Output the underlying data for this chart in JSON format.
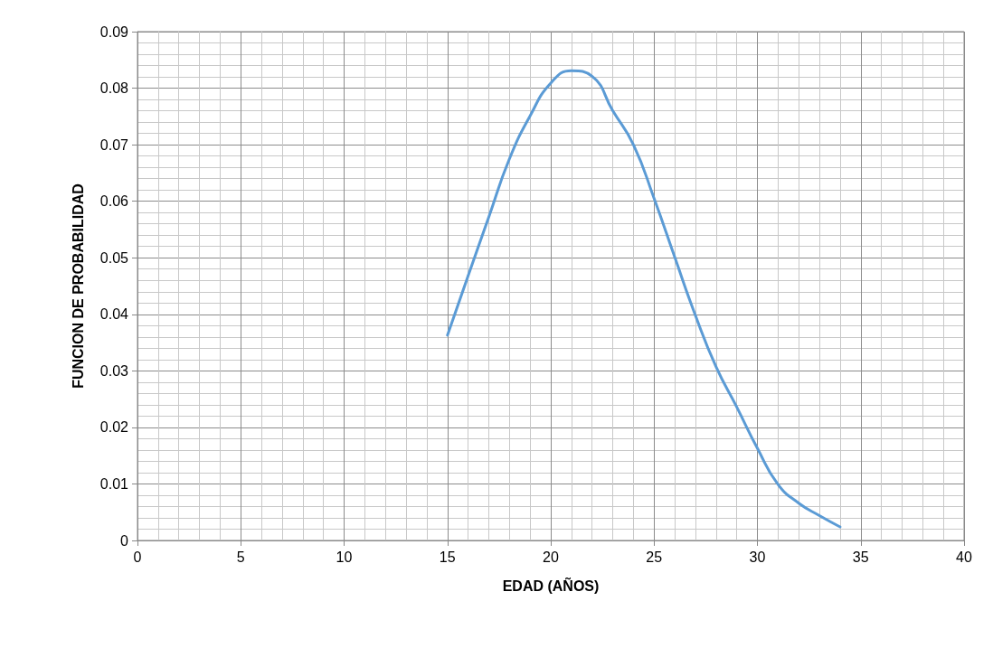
{
  "chart_data": {
    "type": "line",
    "xlabel": "EDAD (AÑOS)",
    "ylabel": "FUNCION DE PROBABILIDAD",
    "x": [
      15,
      16,
      17,
      18,
      19,
      20,
      21,
      22,
      23,
      24,
      25,
      26,
      27,
      28,
      29,
      30,
      31,
      32,
      33,
      34
    ],
    "series": [
      {
        "color": "#5b9bd5",
        "values": [
          0.0363,
          0.0468,
          0.0572,
          0.0675,
          0.0751,
          0.0809,
          0.0831,
          0.0821,
          0.076,
          0.07,
          0.0605,
          0.0501,
          0.0398,
          0.0307,
          0.0236,
          0.0163,
          0.0099,
          0.0066,
          0.0044,
          0.0024
        ]
      }
    ],
    "xlim": [
      0,
      40
    ],
    "xticks": [
      0,
      5,
      10,
      15,
      20,
      25,
      30,
      35,
      40
    ],
    "ylim": [
      0,
      0.09
    ],
    "yticks": [
      0,
      0.01,
      0.02,
      0.03,
      0.04,
      0.05,
      0.06,
      0.07,
      0.08,
      0.09
    ],
    "grid": true,
    "marker": "none",
    "line_style": "solid"
  }
}
